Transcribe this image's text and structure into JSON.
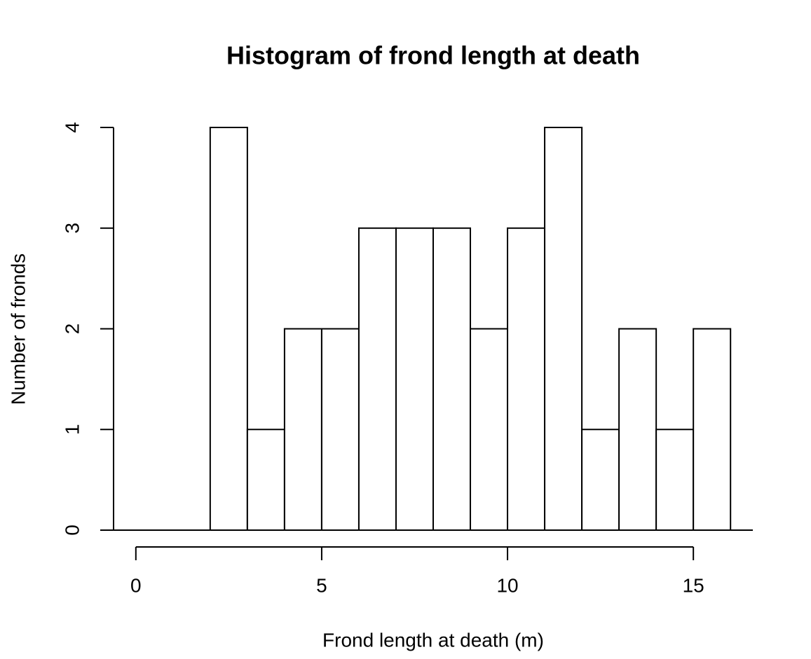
{
  "chart_data": {
    "type": "histogram",
    "title": "Histogram of frond length at death",
    "x_label": "Frond length at death (m)",
    "y_label": "Number of fronds",
    "bins": [
      2,
      3,
      4,
      5,
      6,
      7,
      8,
      9,
      10,
      11,
      12,
      13,
      14,
      15,
      16
    ],
    "values": [
      4,
      1,
      2,
      2,
      3,
      3,
      3,
      2,
      3,
      4,
      1,
      2,
      1,
      2
    ],
    "color": "#ffffff",
    "edgecolor": "#000000",
    "xlim": [
      -0.6,
      16.6
    ],
    "ylim": [
      0,
      4
    ],
    "xticks": [
      0,
      5,
      10,
      15
    ],
    "yticks": [
      0,
      1,
      2,
      3,
      4
    ]
  }
}
